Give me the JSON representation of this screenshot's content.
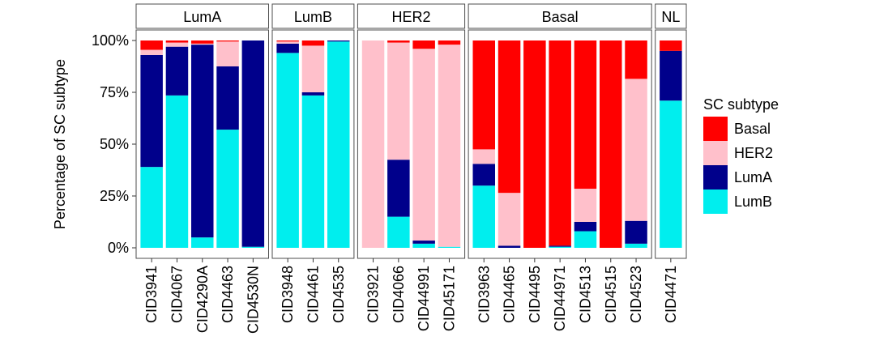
{
  "chart_data": {
    "type": "bar",
    "stacked": true,
    "ylabel": "Percentage of SC subtype",
    "ylim": [
      0,
      100
    ],
    "yticks": [
      0,
      25,
      50,
      75,
      100
    ],
    "ytick_labels": [
      "0%",
      "25%",
      "50%",
      "75%",
      "100%"
    ],
    "legend": {
      "title": "SC subtype",
      "placement": "right",
      "entries": [
        {
          "name": "Basal",
          "color": "#FF0000"
        },
        {
          "name": "HER2",
          "color": "#FFC0CB"
        },
        {
          "name": "LumA",
          "color": "#00008B"
        },
        {
          "name": "LumB",
          "color": "#00EEEE"
        }
      ]
    },
    "stack_order_bottom_to_top": [
      "LumB",
      "LumA",
      "HER2",
      "Basal"
    ],
    "facets": [
      {
        "label": "LumA",
        "bars": [
          {
            "name": "CID3941",
            "LumB": 39,
            "LumA": 54,
            "HER2": 2.5,
            "Basal": 4.5
          },
          {
            "name": "CID4067",
            "LumB": 73.5,
            "LumA": 23.5,
            "HER2": 2,
            "Basal": 1
          },
          {
            "name": "CID4290A",
            "LumB": 5,
            "LumA": 93,
            "HER2": 0.5,
            "Basal": 1.5
          },
          {
            "name": "CID4463",
            "LumB": 57,
            "LumA": 30.5,
            "HER2": 12,
            "Basal": 0.5
          },
          {
            "name": "CID4530N",
            "LumB": 0.5,
            "LumA": 99.5,
            "HER2": 0,
            "Basal": 0
          }
        ]
      },
      {
        "label": "LumB",
        "bars": [
          {
            "name": "CID3948",
            "LumB": 94,
            "LumA": 4.5,
            "HER2": 1,
            "Basal": 0.5
          },
          {
            "name": "CID4461",
            "LumB": 73.5,
            "LumA": 1.5,
            "HER2": 22.5,
            "Basal": 2.5
          },
          {
            "name": "CID4535",
            "LumB": 99.5,
            "LumA": 0.5,
            "HER2": 0,
            "Basal": 0
          }
        ]
      },
      {
        "label": "HER2",
        "bars": [
          {
            "name": "CID3921",
            "LumB": 0,
            "LumA": 0,
            "HER2": 100,
            "Basal": 0
          },
          {
            "name": "CID4066",
            "LumB": 15,
            "LumA": 27.5,
            "HER2": 56.5,
            "Basal": 1
          },
          {
            "name": "CID44991",
            "LumB": 2,
            "LumA": 1.5,
            "HER2": 92.5,
            "Basal": 4
          },
          {
            "name": "CID45171",
            "LumB": 0.5,
            "LumA": 0,
            "HER2": 97.5,
            "Basal": 2
          }
        ]
      },
      {
        "label": "Basal",
        "bars": [
          {
            "name": "CID3963",
            "LumB": 30,
            "LumA": 10.5,
            "HER2": 7,
            "Basal": 52.5
          },
          {
            "name": "CID4465",
            "LumB": 0,
            "LumA": 1,
            "HER2": 25.5,
            "Basal": 73.5
          },
          {
            "name": "CID4495",
            "LumB": 0,
            "LumA": 0,
            "HER2": 0,
            "Basal": 100
          },
          {
            "name": "CID44971",
            "LumB": 0.5,
            "LumA": 0.5,
            "HER2": 0,
            "Basal": 99
          },
          {
            "name": "CID4513",
            "LumB": 8,
            "LumA": 4.5,
            "HER2": 16,
            "Basal": 71.5
          },
          {
            "name": "CID4515",
            "LumB": 0,
            "LumA": 0,
            "HER2": 0,
            "Basal": 100
          },
          {
            "name": "CID4523",
            "LumB": 2,
            "LumA": 11,
            "HER2": 68.5,
            "Basal": 18.5
          }
        ]
      },
      {
        "label": "NL",
        "bars": [
          {
            "name": "CID4471",
            "LumB": 71,
            "LumA": 24,
            "HER2": 0,
            "Basal": 5
          }
        ]
      }
    ]
  }
}
